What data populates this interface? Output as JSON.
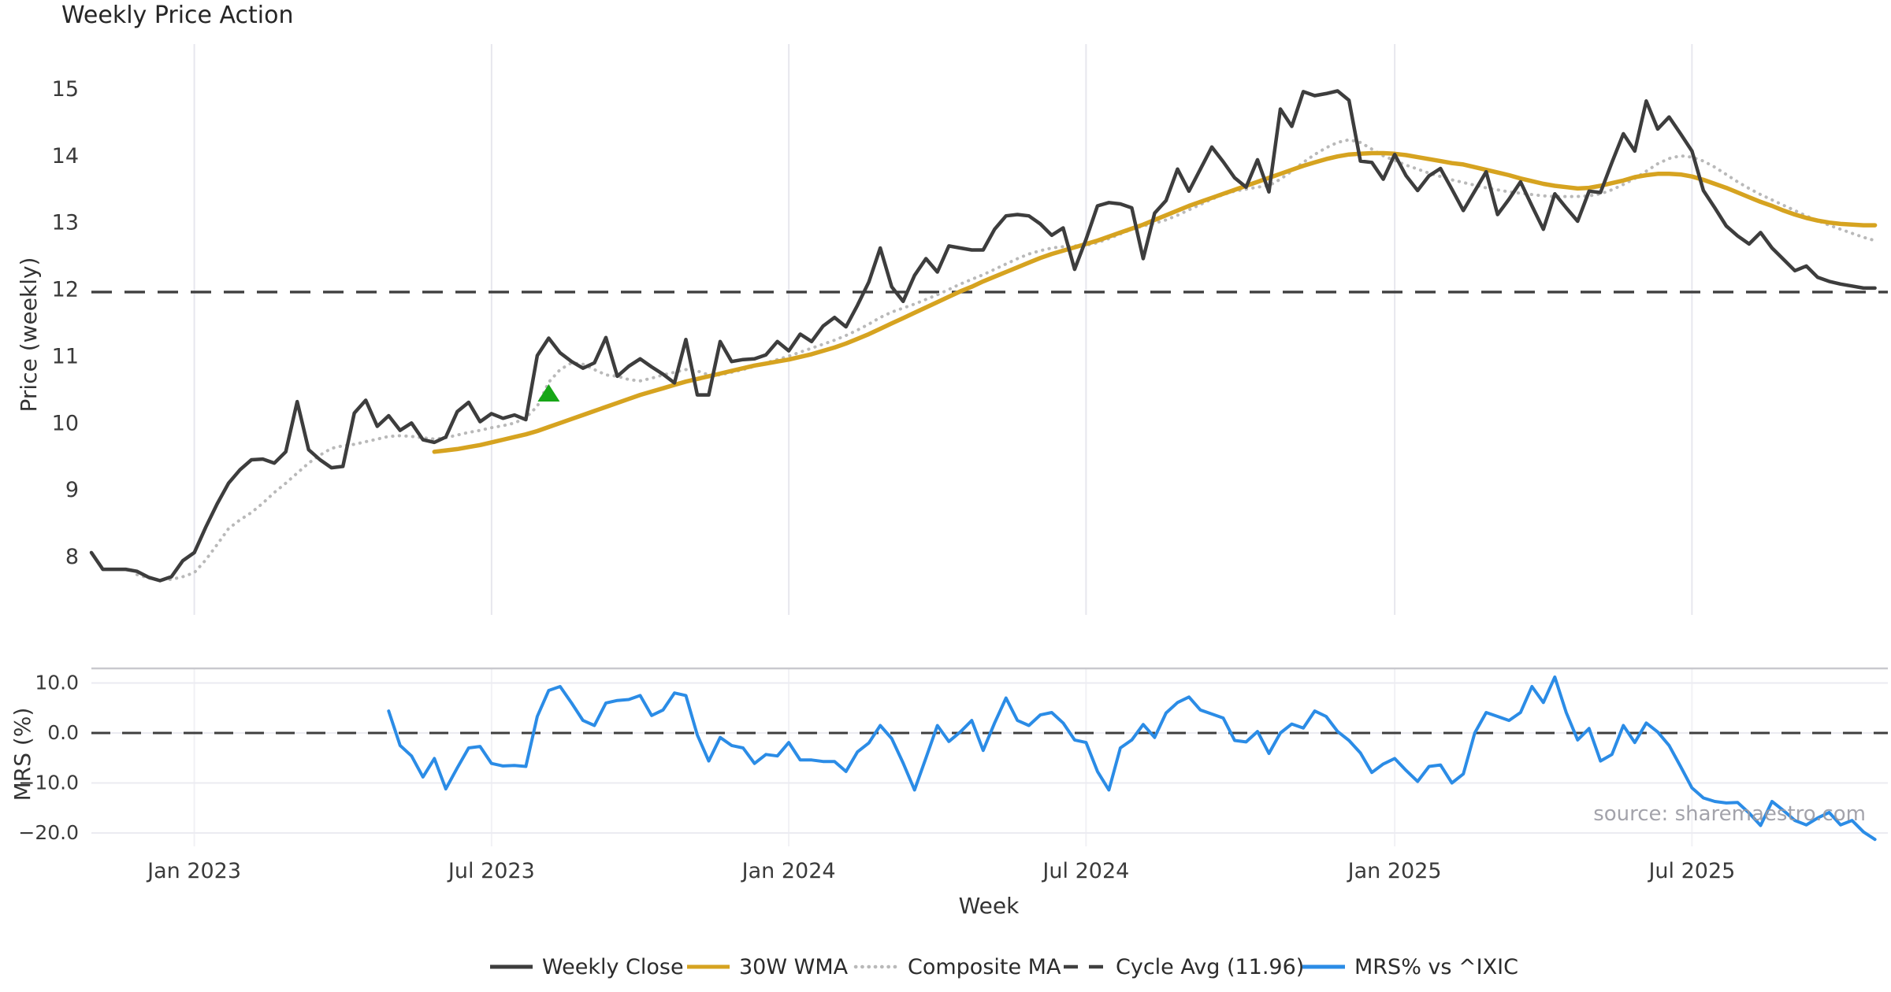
{
  "title": "Weekly Price Action",
  "xlabel": "Week",
  "source_note": "source: sharemaestro.com",
  "legend": {
    "items": [
      {
        "label": "Weekly Close",
        "color": "#3d3d3d",
        "style": "solid"
      },
      {
        "label": "30W WMA",
        "color": "#d6a320",
        "style": "solid"
      },
      {
        "label": "Composite MA",
        "color": "#b9b9b9",
        "style": "dotted"
      },
      {
        "label": "Cycle Avg (11.96)",
        "color": "#3f3f3f",
        "style": "dashed"
      },
      {
        "label": "MRS% vs ^IXIC",
        "color": "#2b8ce6",
        "style": "solid"
      }
    ]
  },
  "chart_data": [
    {
      "type": "line",
      "panel": "price",
      "title": "Weekly Price Action",
      "xlabel": "Week",
      "ylabel": "Price (weekly)",
      "ylim": [
        7.1,
        15.7
      ],
      "grid": "vertical",
      "yticks": [
        {
          "v": 8,
          "label": "8"
        },
        {
          "v": 9,
          "label": "9"
        },
        {
          "v": 10,
          "label": "10"
        },
        {
          "v": 11,
          "label": "11"
        },
        {
          "v": 12,
          "label": "12"
        },
        {
          "v": 13,
          "label": "13"
        },
        {
          "v": 14,
          "label": "14"
        },
        {
          "v": 15,
          "label": "15"
        }
      ],
      "x_unit": "week_index",
      "x_ticks": [
        {
          "week": 9,
          "label": "Jan 2023"
        },
        {
          "week": 35,
          "label": "Jul 2023"
        },
        {
          "week": 61,
          "label": "Jan 2024"
        },
        {
          "week": 87,
          "label": "Jul 2024"
        },
        {
          "week": 114,
          "label": "Jan 2025"
        },
        {
          "week": 140,
          "label": "Jul 2025"
        }
      ],
      "cycle_avg": 11.96,
      "marker": {
        "shape": "triangle-up",
        "color": "#17a617",
        "week": 40,
        "value": 10.44
      },
      "series": [
        {
          "name": "Weekly Close",
          "color": "#3d3d3d",
          "style": "solid",
          "width": 4.5,
          "start_week": 0,
          "values": [
            8.06,
            7.81,
            7.81,
            7.81,
            7.78,
            7.69,
            7.64,
            7.7,
            7.94,
            8.06,
            8.44,
            8.79,
            9.1,
            9.3,
            9.45,
            9.46,
            9.4,
            9.57,
            10.32,
            9.6,
            9.45,
            9.33,
            9.35,
            10.15,
            10.34,
            9.95,
            10.11,
            9.89,
            10.0,
            9.75,
            9.71,
            9.79,
            10.17,
            10.31,
            10.02,
            10.14,
            10.07,
            10.12,
            10.05,
            11.01,
            11.27,
            11.05,
            10.92,
            10.82,
            10.9,
            11.28,
            10.7,
            10.85,
            10.96,
            10.84,
            10.73,
            10.6,
            11.25,
            10.42,
            10.42,
            11.22,
            10.92,
            10.95,
            10.96,
            11.02,
            11.22,
            11.08,
            11.33,
            11.22,
            11.45,
            11.58,
            11.44,
            11.76,
            12.11,
            12.62,
            12.04,
            11.82,
            12.21,
            12.46,
            12.26,
            12.65,
            12.62,
            12.59,
            12.59,
            12.9,
            13.1,
            13.12,
            13.1,
            12.98,
            12.81,
            12.92,
            12.3,
            12.75,
            13.25,
            13.3,
            13.28,
            13.22,
            12.46,
            13.14,
            13.33,
            13.8,
            13.47,
            13.8,
            14.13,
            13.91,
            13.67,
            13.53,
            13.94,
            13.46,
            14.7,
            14.44,
            14.96,
            14.9,
            14.93,
            14.97,
            14.83,
            13.92,
            13.9,
            13.65,
            14.02,
            13.7,
            13.48,
            13.7,
            13.81,
            13.5,
            13.18,
            13.47,
            13.76,
            13.12,
            13.35,
            13.61,
            13.25,
            12.9,
            13.43,
            13.22,
            13.02,
            13.47,
            13.45,
            13.9,
            14.33,
            14.07,
            14.82,
            14.4,
            14.58,
            14.33,
            14.07,
            13.48,
            13.22,
            12.95,
            12.8,
            12.68,
            12.85,
            12.62,
            12.45,
            12.28,
            12.35,
            12.18,
            12.12,
            12.08,
            12.05,
            12.02,
            12.02
          ]
        },
        {
          "name": "30W WMA",
          "color": "#d6a320",
          "style": "solid",
          "width": 5.5,
          "start_week": 30,
          "values": [
            9.57,
            9.59,
            9.61,
            9.64,
            9.67,
            9.71,
            9.75,
            9.79,
            9.83,
            9.88,
            9.94,
            10.0,
            10.06,
            10.12,
            10.18,
            10.24,
            10.3,
            10.36,
            10.42,
            10.47,
            10.52,
            10.57,
            10.62,
            10.66,
            10.7,
            10.74,
            10.78,
            10.82,
            10.86,
            10.89,
            10.92,
            10.95,
            10.99,
            11.03,
            11.08,
            11.13,
            11.19,
            11.26,
            11.33,
            11.41,
            11.49,
            11.57,
            11.65,
            11.73,
            11.81,
            11.89,
            11.97,
            12.04,
            12.12,
            12.19,
            12.26,
            12.33,
            12.4,
            12.47,
            12.53,
            12.58,
            12.63,
            12.68,
            12.73,
            12.79,
            12.85,
            12.91,
            12.97,
            13.04,
            13.11,
            13.18,
            13.25,
            13.31,
            13.37,
            13.43,
            13.49,
            13.55,
            13.61,
            13.67,
            13.73,
            13.79,
            13.85,
            13.9,
            13.95,
            13.99,
            14.02,
            14.03,
            14.04,
            14.04,
            14.03,
            14.01,
            13.98,
            13.95,
            13.92,
            13.89,
            13.87,
            13.83,
            13.79,
            13.75,
            13.71,
            13.66,
            13.62,
            13.58,
            13.55,
            13.53,
            13.51,
            13.52,
            13.55,
            13.59,
            13.63,
            13.68,
            13.71,
            13.73,
            13.73,
            13.72,
            13.69,
            13.64,
            13.58,
            13.52,
            13.45,
            13.38,
            13.31,
            13.25,
            13.18,
            13.12,
            13.07,
            13.03,
            13.0,
            12.98,
            12.97,
            12.96,
            12.96
          ]
        },
        {
          "name": "Composite MA",
          "color": "#b9b9b9",
          "style": "dotted",
          "width": 4,
          "start_week": 4,
          "values": [
            7.73,
            7.68,
            7.65,
            7.66,
            7.7,
            7.76,
            7.95,
            8.18,
            8.42,
            8.55,
            8.66,
            8.8,
            8.96,
            9.1,
            9.25,
            9.4,
            9.52,
            9.62,
            9.66,
            9.68,
            9.72,
            9.76,
            9.8,
            9.81,
            9.8,
            9.78,
            9.76,
            9.78,
            9.82,
            9.86,
            9.89,
            9.93,
            9.96,
            10.0,
            10.08,
            10.25,
            10.61,
            10.8,
            10.9,
            10.88,
            10.8,
            10.72,
            10.7,
            10.65,
            10.63,
            10.67,
            10.72,
            10.76,
            10.8,
            10.78,
            10.72,
            10.72,
            10.76,
            10.8,
            10.85,
            10.9,
            10.95,
            11.0,
            11.06,
            11.12,
            11.18,
            11.24,
            11.31,
            11.39,
            11.48,
            11.58,
            11.66,
            11.72,
            11.78,
            11.85,
            11.92,
            12.0,
            12.08,
            12.15,
            12.22,
            12.3,
            12.38,
            12.46,
            12.53,
            12.58,
            12.62,
            12.64,
            12.65,
            12.66,
            12.7,
            12.76,
            12.83,
            12.9,
            12.95,
            12.99,
            13.04,
            13.11,
            13.19,
            13.27,
            13.35,
            13.42,
            13.47,
            13.5,
            13.53,
            13.55,
            13.65,
            13.77,
            13.9,
            14.02,
            14.12,
            14.2,
            14.24,
            14.2,
            14.1,
            14.0,
            13.93,
            13.86,
            13.8,
            13.74,
            13.69,
            13.64,
            13.6,
            13.56,
            13.52,
            13.49,
            13.46,
            13.44,
            13.42,
            13.4,
            13.39,
            13.39,
            13.39,
            13.4,
            13.43,
            13.49,
            13.57,
            13.66,
            13.77,
            13.88,
            13.96,
            14.0,
            13.98,
            13.92,
            13.83,
            13.72,
            13.61,
            13.51,
            13.42,
            13.34,
            13.26,
            13.18,
            13.1,
            13.03,
            12.96,
            12.9,
            12.84,
            12.78,
            12.73
          ]
        }
      ]
    },
    {
      "type": "line",
      "panel": "mrs",
      "ylabel": "MRS (%)",
      "ylim": [
        -23,
        12.6
      ],
      "grid": "horizontal",
      "yticks": [
        {
          "v": 10,
          "label": "10.0"
        },
        {
          "v": 0,
          "label": "0.0"
        },
        {
          "v": -10,
          "label": "−10.0"
        },
        {
          "v": -20,
          "label": "−20.0"
        }
      ],
      "zero_line": 0,
      "series": [
        {
          "name": "MRS% vs ^IXIC",
          "color": "#2b8ce6",
          "style": "solid",
          "width": 4,
          "start_week": 26,
          "values": [
            4.4,
            -2.5,
            -4.6,
            -8.8,
            -5.1,
            -11.2,
            -7.0,
            -3.0,
            -2.7,
            -6.1,
            -6.6,
            -6.5,
            -6.7,
            3.3,
            8.5,
            9.3,
            6.0,
            2.5,
            1.5,
            6.0,
            6.5,
            6.7,
            7.5,
            3.5,
            4.6,
            8.0,
            7.5,
            -0.4,
            -5.6,
            -0.9,
            -2.5,
            -3.0,
            -6.1,
            -4.3,
            -4.6,
            -1.9,
            -5.4,
            -5.4,
            -5.7,
            -5.7,
            -7.7,
            -3.8,
            -2.0,
            1.5,
            -1.1,
            -6.0,
            -11.4,
            -5.0,
            1.5,
            -1.7,
            0.2,
            2.5,
            -3.5,
            2.0,
            7.0,
            2.5,
            1.5,
            3.6,
            4.1,
            2.0,
            -1.4,
            -1.9,
            -7.7,
            -11.4,
            -3.0,
            -1.4,
            1.7,
            -0.9,
            4.0,
            6.1,
            7.2,
            4.6,
            3.8,
            3.0,
            -1.5,
            -1.8,
            0.3,
            -4.1,
            0.0,
            1.8,
            1.0,
            4.4,
            3.3,
            0.3,
            -1.5,
            -4.0,
            -7.9,
            -6.2,
            -5.1,
            -7.5,
            -9.7,
            -6.7,
            -6.4,
            -10.0,
            -8.2,
            0.0,
            4.1,
            3.3,
            2.5,
            4.1,
            9.3,
            6.1,
            11.2,
            4.1,
            -1.4,
            0.9,
            -5.6,
            -4.3,
            1.5,
            -1.9,
            2.0,
            0.2,
            -2.5,
            -6.7,
            -11.0,
            -13.0,
            -13.7,
            -14.0,
            -13.9,
            -16.0,
            -18.5,
            -13.7,
            -15.5,
            -17.5,
            -18.4,
            -17.0,
            -15.9,
            -18.4,
            -17.5,
            -19.8,
            -21.3
          ]
        }
      ]
    }
  ]
}
